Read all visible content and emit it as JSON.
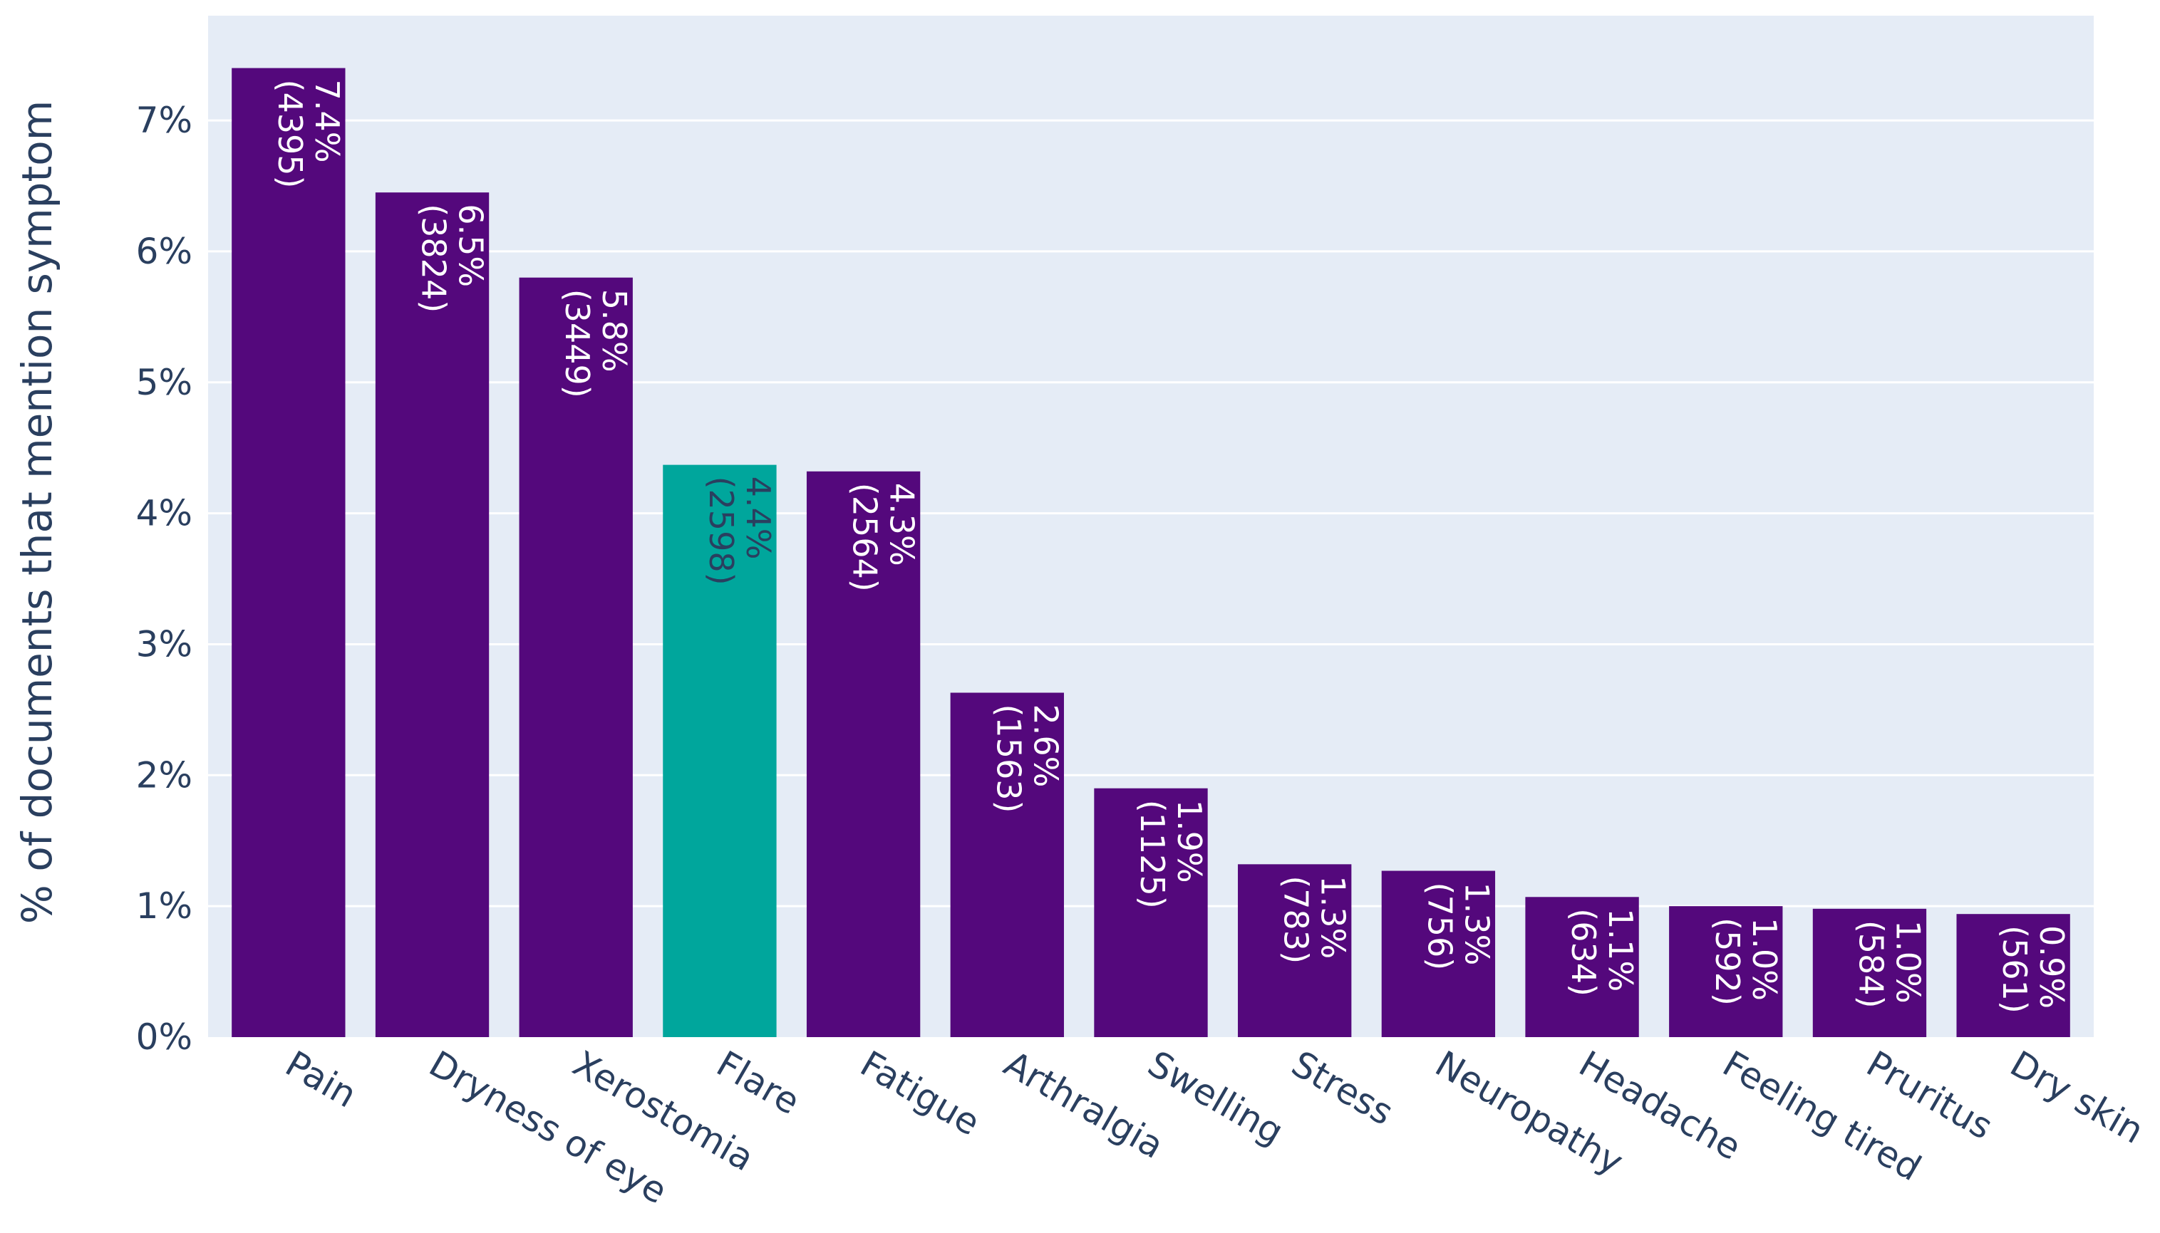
{
  "chart_data": {
    "type": "bar",
    "title": "",
    "xlabel": "",
    "ylabel": "% of documents that mention symptom",
    "ylim": [
      0,
      7.8
    ],
    "yticks": [
      0,
      1,
      2,
      3,
      4,
      5,
      6,
      7
    ],
    "ytick_labels": [
      "0%",
      "1%",
      "2%",
      "3%",
      "4%",
      "5%",
      "6%",
      "7%"
    ],
    "grid": true,
    "legend": "none",
    "colors": {
      "default": "#54087c",
      "highlight": "#00a69c",
      "plot_background": "#e5ecf6",
      "gridline": "#ffffff",
      "label_default": "#ffffff",
      "label_highlight": "#2a3f5f"
    },
    "categories": [
      "Pain",
      "Dryness of eye",
      "Xerostomia",
      "Flare",
      "Fatigue",
      "Arthralgia",
      "Swelling",
      "Stress",
      "Neuropathy",
      "Headache",
      "Feeling tired",
      "Pruritus",
      "Dry skin"
    ],
    "values": [
      7.4,
      6.45,
      5.8,
      4.37,
      4.32,
      2.63,
      1.9,
      1.32,
      1.27,
      1.07,
      1.0,
      0.98,
      0.94
    ],
    "percent_labels": [
      "7.4%",
      "6.5%",
      "5.8%",
      "4.4%",
      "4.3%",
      "2.6%",
      "1.9%",
      "1.3%",
      "1.3%",
      "1.1%",
      "1.0%",
      "1.0%",
      "0.9%"
    ],
    "count_labels": [
      "(4395)",
      "(3824)",
      "(3449)",
      "(2598)",
      "(2564)",
      "(1563)",
      "(1125)",
      "(783)",
      "(756)",
      "(634)",
      "(592)",
      "(584)",
      "(561)"
    ],
    "highlight_index": 3
  }
}
